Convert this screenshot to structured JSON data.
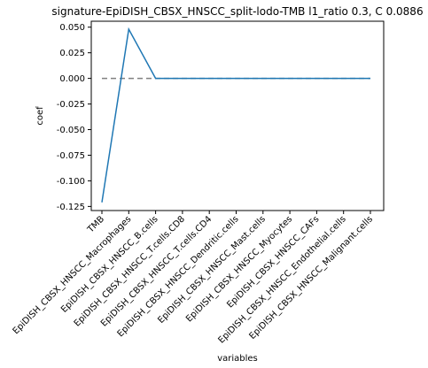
{
  "chart_data": {
    "type": "line",
    "title": "signature-EpiDISH_CBSX_HNSCC_split-lodo-TMB l1_ratio 0.3, C 0.0886",
    "xlabel": "variables",
    "ylabel": "coef",
    "categories": [
      "TMB",
      "EpiDISH_CBSX_HNSCC_Macrophages",
      "EpiDISH_CBSX_HNSCC_B.cells",
      "EpiDISH_CBSX_HNSCC_T.cells.CD8",
      "EpiDISH_CBSX_HNSCC_T.cells.CD4",
      "EpiDISH_CBSX_HNSCC_Dendritic.cells",
      "EpiDISH_CBSX_HNSCC_Mast.cells",
      "EpiDISH_CBSX_HNSCC_Myocytes",
      "EpiDISH_CBSX_HNSCC_CAFs",
      "EpiDISH_CBSX_HNSCC_Endothelial.cells",
      "EpiDISH_CBSX_HNSCC_Malignant.cells"
    ],
    "series": [
      {
        "values": [
          -0.121,
          0.048,
          0.0,
          0.0,
          0.0,
          0.0,
          0.0,
          0.0,
          0.0,
          0.0,
          0.0
        ],
        "color": "#1f77b4"
      }
    ],
    "reference_line": {
      "y": 0.0,
      "style": "dashed",
      "color": "#808080"
    },
    "yticks": [
      "-0.125",
      "-0.100",
      "-0.075",
      "-0.050",
      "-0.025",
      "0.000",
      "0.025",
      "0.050"
    ],
    "ylim": [
      -0.129,
      0.0558
    ],
    "grid": false
  }
}
